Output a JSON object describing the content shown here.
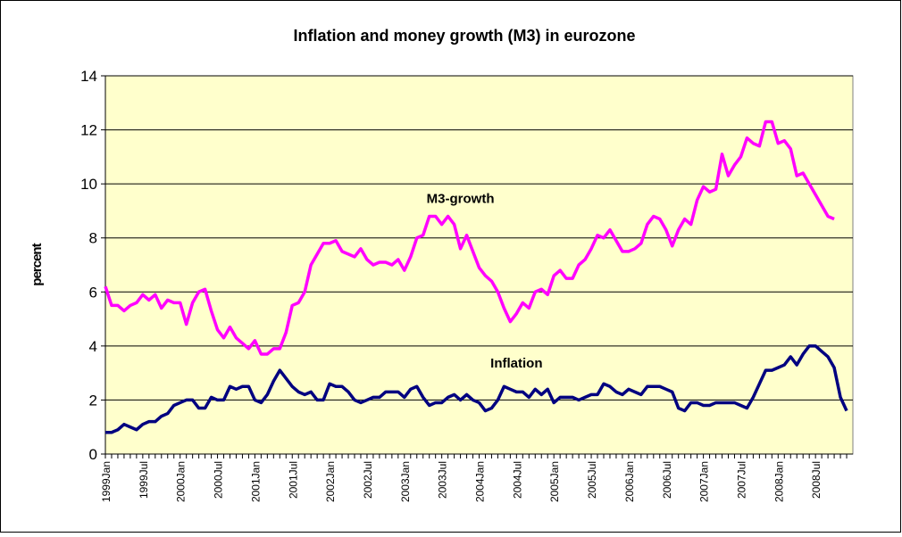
{
  "chart_data": {
    "type": "line",
    "title": "Inflation and money growth (M3) in eurozone",
    "ylabel": "percent",
    "annotations": [
      {
        "text": "M3-growth",
        "x": 57,
        "y": 9.3
      },
      {
        "text": "Inflation",
        "x": 66,
        "y": 3.2
      }
    ],
    "categories": [
      "1999Jan",
      null,
      null,
      null,
      null,
      null,
      "1999Jul",
      null,
      null,
      null,
      null,
      null,
      "2000Jan",
      null,
      null,
      null,
      null,
      null,
      "2000Jul",
      null,
      null,
      null,
      null,
      null,
      "2001Jan",
      null,
      null,
      null,
      null,
      null,
      "2001Jul",
      null,
      null,
      null,
      null,
      null,
      "2002Jan",
      null,
      null,
      null,
      null,
      null,
      "2002Jul",
      null,
      null,
      null,
      null,
      null,
      "2003Jan",
      null,
      null,
      null,
      null,
      null,
      "2003Jul",
      null,
      null,
      null,
      null,
      null,
      "2004Jan",
      null,
      null,
      null,
      null,
      null,
      "2004Jul",
      null,
      null,
      null,
      null,
      null,
      "2005Jan",
      null,
      null,
      null,
      null,
      null,
      "2005Jul",
      null,
      null,
      null,
      null,
      null,
      "2006Jan",
      null,
      null,
      null,
      null,
      null,
      "2006Jul",
      null,
      null,
      null,
      null,
      null,
      "2007Jan",
      null,
      null,
      null,
      null,
      null,
      "2007Jul",
      null,
      null,
      null,
      null,
      null,
      "2008Jan",
      null,
      null,
      null,
      null,
      null,
      "2008Jul",
      null,
      null,
      null,
      null,
      null
    ],
    "series": [
      {
        "name": "M3-growth",
        "color": "#ff00ff",
        "values": [
          6.2,
          5.5,
          5.5,
          5.3,
          5.5,
          5.6,
          5.9,
          5.7,
          5.9,
          5.4,
          5.7,
          5.6,
          5.6,
          4.8,
          5.6,
          6.0,
          6.1,
          5.3,
          4.6,
          4.3,
          4.7,
          4.3,
          4.1,
          3.9,
          4.2,
          3.7,
          3.7,
          3.9,
          3.9,
          4.5,
          5.5,
          5.6,
          6.0,
          7.0,
          7.4,
          7.8,
          7.8,
          7.9,
          7.5,
          7.4,
          7.3,
          7.6,
          7.2,
          7.0,
          7.1,
          7.1,
          7.0,
          7.2,
          6.8,
          7.3,
          8.0,
          8.1,
          8.8,
          8.8,
          8.5,
          8.8,
          8.5,
          7.6,
          8.1,
          7.5,
          6.9,
          6.6,
          6.4,
          6.0,
          5.4,
          4.9,
          5.2,
          5.6,
          5.4,
          6.0,
          6.1,
          5.9,
          6.6,
          6.8,
          6.5,
          6.5,
          7.0,
          7.2,
          7.6,
          8.1,
          8.0,
          8.3,
          7.9,
          7.5,
          7.5,
          7.6,
          7.8,
          8.5,
          8.8,
          8.7,
          8.3,
          7.7,
          8.3,
          8.7,
          8.5,
          9.4,
          9.9,
          9.7,
          9.8,
          11.1,
          10.3,
          10.7,
          11.0,
          11.7,
          11.5,
          11.4,
          12.3,
          12.3,
          11.5,
          11.6,
          11.3,
          10.3,
          10.4,
          10.0,
          9.6,
          9.2,
          8.8,
          8.7,
          null,
          null
        ]
      },
      {
        "name": "Inflation",
        "color": "#000080",
        "values": [
          0.8,
          0.8,
          0.9,
          1.1,
          1.0,
          0.9,
          1.1,
          1.2,
          1.2,
          1.4,
          1.5,
          1.8,
          1.9,
          2.0,
          2.0,
          1.7,
          1.7,
          2.1,
          2.0,
          2.0,
          2.5,
          2.4,
          2.5,
          2.5,
          2.0,
          1.9,
          2.2,
          2.7,
          3.1,
          2.8,
          2.5,
          2.3,
          2.2,
          2.3,
          2.0,
          2.0,
          2.6,
          2.5,
          2.5,
          2.3,
          2.0,
          1.9,
          2.0,
          2.1,
          2.1,
          2.3,
          2.3,
          2.3,
          2.1,
          2.4,
          2.5,
          2.1,
          1.8,
          1.9,
          1.9,
          2.1,
          2.2,
          2.0,
          2.2,
          2.0,
          1.9,
          1.6,
          1.7,
          2.0,
          2.5,
          2.4,
          2.3,
          2.3,
          2.1,
          2.4,
          2.2,
          2.4,
          1.9,
          2.1,
          2.1,
          2.1,
          2.0,
          2.1,
          2.2,
          2.2,
          2.6,
          2.5,
          2.3,
          2.2,
          2.4,
          2.3,
          2.2,
          2.5,
          2.5,
          2.5,
          2.4,
          2.3,
          1.7,
          1.6,
          1.9,
          1.9,
          1.8,
          1.8,
          1.9,
          1.9,
          1.9,
          1.9,
          1.8,
          1.7,
          2.1,
          2.6,
          3.1,
          3.1,
          3.2,
          3.3,
          3.6,
          3.3,
          3.7,
          4.0,
          4.0,
          3.8,
          3.6,
          3.2,
          2.1,
          1.6
        ]
      }
    ],
    "ylim": [
      0,
      14
    ],
    "yticks": [
      0,
      2,
      4,
      6,
      8,
      10,
      12,
      14
    ],
    "grid": true,
    "plot_background": "#ffffcc"
  }
}
